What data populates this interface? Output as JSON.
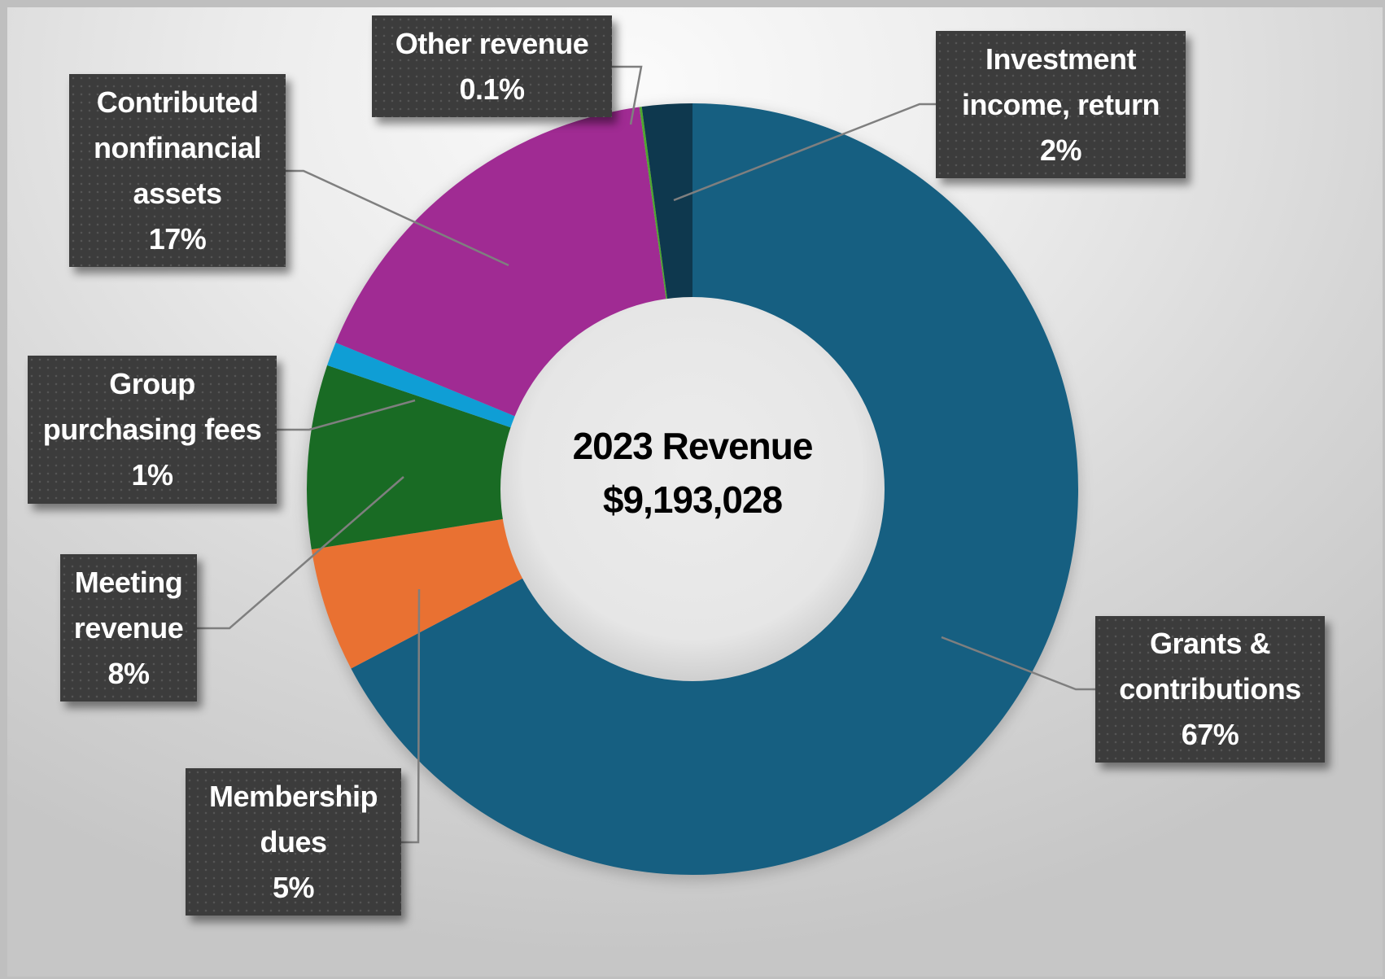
{
  "chart_data": {
    "type": "pie",
    "variant": "doughnut",
    "title": "2023 Revenue",
    "total_label": "$9,193,028",
    "start_angle_deg": 0,
    "direction": "clockwise",
    "legend": "none (data labels with leader lines)",
    "slices": [
      {
        "name": "Grants & contributions",
        "percent_label": "67%",
        "value": 67.3,
        "color": "#165f81"
      },
      {
        "name": "Membership dues",
        "percent_label": "5%",
        "value": 5.2,
        "color": "#e97132"
      },
      {
        "name": "Meeting revenue",
        "percent_label": "8%",
        "value": 7.7,
        "color": "#196b24"
      },
      {
        "name": "Group purchasing fees",
        "percent_label": "1%",
        "value": 1.0,
        "color": "#0f9ed5"
      },
      {
        "name": "Contributed nonfinancial assets",
        "percent_label": "17%",
        "value": 16.6,
        "color": "#a02b93"
      },
      {
        "name": "Other revenue",
        "percent_label": "0.1%",
        "value": 0.1,
        "color": "#4ea72e"
      },
      {
        "name": "Investment income, return",
        "percent_label": "2%",
        "value": 2.1,
        "color": "#0e384e"
      }
    ]
  },
  "center": {
    "line1": "2023 Revenue",
    "line2": "$9,193,028"
  },
  "labels": {
    "other": {
      "lines": [
        "Other revenue",
        "0.1%"
      ]
    },
    "investment": {
      "lines": [
        "Investment",
        "income, return",
        "2%"
      ]
    },
    "contributed": {
      "lines": [
        "Contributed",
        "nonfinancial",
        "assets",
        "17%"
      ]
    },
    "group": {
      "lines": [
        "Group",
        "purchasing fees",
        "1%"
      ]
    },
    "meeting": {
      "lines": [
        "Meeting",
        "revenue",
        "8%"
      ]
    },
    "membership": {
      "lines": [
        "Membership",
        "dues",
        "5%"
      ]
    },
    "grants": {
      "lines": [
        "Grants &",
        "contributions",
        "67%"
      ]
    }
  }
}
